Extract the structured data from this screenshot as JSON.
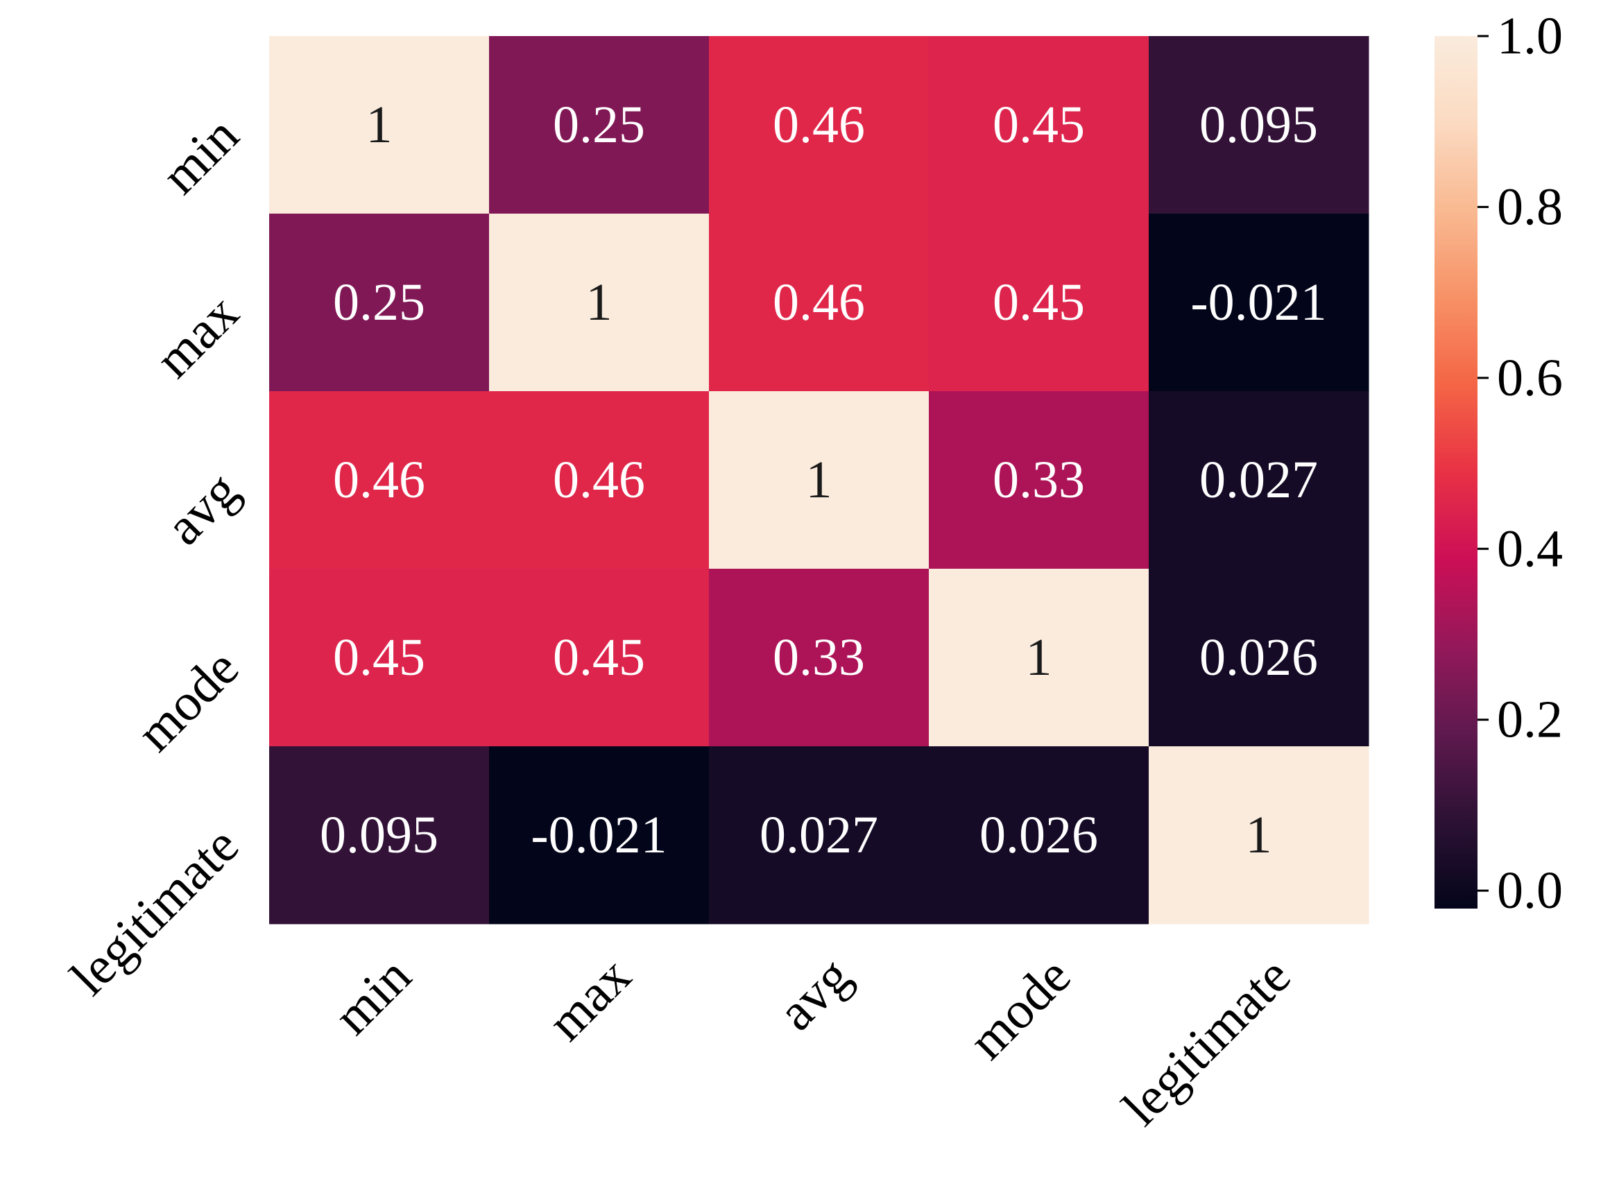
{
  "chart_data": {
    "type": "heatmap",
    "title": "",
    "xlabel": "",
    "ylabel": "",
    "x_labels": [
      "min",
      "max",
      "avg",
      "mode",
      "legitimate"
    ],
    "y_labels": [
      "min",
      "max",
      "avg",
      "mode",
      "legitimate"
    ],
    "matrix": [
      [
        1,
        0.25,
        0.46,
        0.45,
        0.095
      ],
      [
        0.25,
        1,
        0.46,
        0.45,
        -0.021
      ],
      [
        0.46,
        0.46,
        1,
        0.33,
        0.027
      ],
      [
        0.45,
        0.45,
        0.33,
        1,
        0.026
      ],
      [
        0.095,
        -0.021,
        0.027,
        0.026,
        1
      ]
    ],
    "cell_labels": [
      [
        "1",
        "0.25",
        "0.46",
        "0.45",
        "0.095"
      ],
      [
        "0.25",
        "1",
        "0.46",
        "0.45",
        "-0.021"
      ],
      [
        "0.46",
        "0.46",
        "1",
        "0.33",
        "0.027"
      ],
      [
        "0.45",
        "0.45",
        "0.33",
        "1",
        "0.026"
      ],
      [
        "0.095",
        "-0.021",
        "0.027",
        "0.026",
        "1"
      ]
    ],
    "colormap": "rocket",
    "vmin": -0.021,
    "vmax": 1,
    "colorbar": {
      "ticks": [
        0.0,
        0.2,
        0.4,
        0.6,
        0.8,
        1.0
      ],
      "tick_labels": [
        "0.0",
        "0.2",
        "0.4",
        "0.6",
        "0.8",
        "1.0"
      ]
    },
    "colors": {
      "text_light": "#ffffff",
      "text_dark": "#1a1a1a"
    }
  }
}
